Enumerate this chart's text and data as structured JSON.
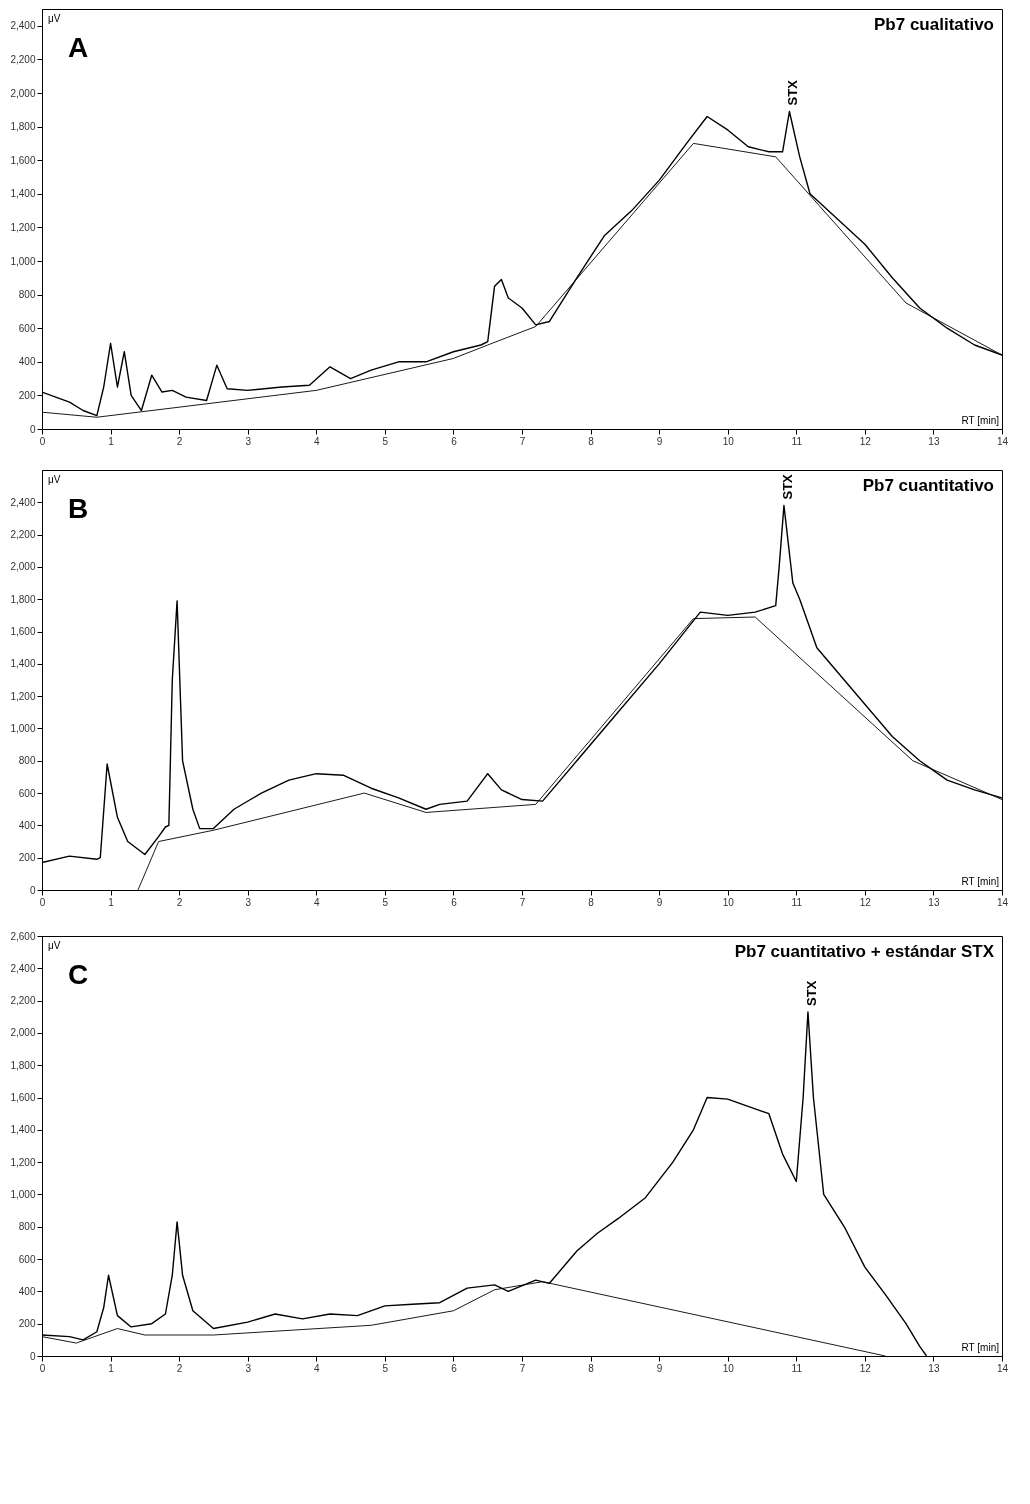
{
  "chart_data": [
    {
      "type": "line",
      "title": "Pb7 cualitativo",
      "xlabel": "RT [min]",
      "ylabel": "μV",
      "annotations": [
        "A",
        {
          "text": "STX",
          "x": 10.9,
          "y": 1890
        }
      ],
      "xlim": [
        0,
        14
      ],
      "xticks": [
        0,
        1,
        2,
        3,
        4,
        5,
        6,
        7,
        8,
        9,
        10,
        11,
        12,
        13,
        14
      ],
      "ylim": [
        0,
        2500
      ],
      "yticks": [
        0,
        200,
        400,
        600,
        800,
        {
          "value": 1000,
          "label": "1,000"
        },
        {
          "value": 1200,
          "label": "1,200"
        },
        {
          "value": 1400,
          "label": "1,400"
        },
        {
          "value": 1600,
          "label": "1,600"
        },
        {
          "value": 1800,
          "label": "1,800"
        },
        {
          "value": 2000,
          "label": "2,000"
        },
        {
          "value": 2200,
          "label": "2,200"
        },
        {
          "value": 2400,
          "label": "2,400"
        }
      ],
      "series": [
        {
          "color": "#000000",
          "x": [
            0,
            0.2,
            0.4,
            0.6,
            0.8,
            0.9,
            1.0,
            1.1,
            1.2,
            1.3,
            1.45,
            1.6,
            1.75,
            1.9,
            2.1,
            2.4,
            2.55,
            2.7,
            3.0,
            3.5,
            3.9,
            4.2,
            4.5,
            4.8,
            5.2,
            5.6,
            6.0,
            6.4,
            6.5,
            6.6,
            6.7,
            6.8,
            7.0,
            7.2,
            7.4,
            7.8,
            8.2,
            8.6,
            9.0,
            9.4,
            9.7,
            10.0,
            10.3,
            10.6,
            10.8,
            10.9,
            11.05,
            11.2,
            11.6,
            12.0,
            12.4,
            12.8,
            13.2,
            13.6,
            14
          ],
          "values": [
            220,
            190,
            160,
            110,
            80,
            250,
            510,
            250,
            460,
            200,
            110,
            320,
            220,
            230,
            190,
            170,
            380,
            240,
            230,
            250,
            260,
            370,
            300,
            350,
            400,
            400,
            460,
            500,
            520,
            850,
            890,
            780,
            720,
            620,
            640,
            900,
            1150,
            1300,
            1480,
            1700,
            1860,
            1780,
            1680,
            1650,
            1650,
            1890,
            1620,
            1400,
            1250,
            1100,
            900,
            720,
            600,
            500,
            440
          ]
        },
        {
          "color": "#000000",
          "x": [
            0,
            0.8,
            2,
            4,
            6,
            6.5,
            7.2,
            9.5,
            10.7,
            12.6,
            14
          ],
          "values": [
            100,
            70,
            130,
            230,
            420,
            500,
            610,
            1700,
            1620,
            750,
            440
          ]
        }
      ]
    },
    {
      "type": "line",
      "title": "Pb7 cuantitativo",
      "xlabel": "RT [min]",
      "ylabel": "μV",
      "annotations": [
        "B",
        {
          "text": "STX",
          "x": 10.82,
          "y": 2380
        }
      ],
      "xlim": [
        0,
        14
      ],
      "xticks": [
        0,
        1,
        2,
        3,
        4,
        5,
        6,
        7,
        8,
        9,
        10,
        11,
        12,
        13,
        14
      ],
      "ylim": [
        0,
        2600
      ],
      "yticks": [
        0,
        200,
        400,
        600,
        800,
        {
          "value": 1000,
          "label": "1,000"
        },
        {
          "value": 1200,
          "label": "1,200"
        },
        {
          "value": 1400,
          "label": "1,400"
        },
        {
          "value": 1600,
          "label": "1,600"
        },
        {
          "value": 1800,
          "label": "1,800"
        },
        {
          "value": 2000,
          "label": "2,000"
        },
        {
          "value": 2200,
          "label": "2,200"
        },
        {
          "value": 2400,
          "label": "2,400"
        }
      ],
      "series": [
        {
          "color": "#000000",
          "x": [
            0,
            0.4,
            0.8,
            0.85,
            0.95,
            1.1,
            1.25,
            1.5,
            1.7,
            1.8,
            1.85,
            1.9,
            1.97,
            2.05,
            2.2,
            2.3,
            2.5,
            2.8,
            3.2,
            3.6,
            4.0,
            4.4,
            4.8,
            5.2,
            5.6,
            5.8,
            6.2,
            6.5,
            6.7,
            7.0,
            7.3,
            7.8,
            8.4,
            9.0,
            9.6,
            10.0,
            10.4,
            10.7,
            10.75,
            10.82,
            10.95,
            11.05,
            11.3,
            11.6,
            12.0,
            12.4,
            12.8,
            13.2,
            13.6,
            14
          ],
          "values": [
            170,
            210,
            190,
            200,
            780,
            450,
            300,
            220,
            330,
            390,
            400,
            1300,
            1790,
            800,
            500,
            380,
            380,
            500,
            600,
            680,
            720,
            710,
            630,
            570,
            500,
            530,
            550,
            720,
            620,
            560,
            550,
            800,
            1100,
            1400,
            1720,
            1700,
            1720,
            1760,
            2000,
            2380,
            1900,
            1800,
            1500,
            1350,
            1150,
            950,
            800,
            680,
            620,
            570
          ]
        },
        {
          "color": "#000000",
          "x": [
            1.4,
            1.7,
            2.5,
            4.7,
            5.6,
            7.2,
            9.5,
            10.4,
            12.7,
            14
          ],
          "values": [
            0,
            300,
            370,
            600,
            480,
            530,
            1680,
            1690,
            800,
            560
          ]
        }
      ]
    },
    {
      "type": "line",
      "title": "Pb7 cuantitativo + estándar STX",
      "xlabel": "RT [min]",
      "ylabel": "μV",
      "annotations": [
        "C",
        {
          "text": "STX",
          "x": 11.17,
          "y": 2130
        }
      ],
      "xlim": [
        0,
        14
      ],
      "xticks": [
        0,
        1,
        2,
        3,
        4,
        5,
        6,
        7,
        8,
        9,
        10,
        11,
        12,
        13,
        14
      ],
      "ylim": [
        0,
        2600
      ],
      "yticks": [
        0,
        200,
        400,
        600,
        800,
        {
          "value": 1000,
          "label": "1,000"
        },
        {
          "value": 1200,
          "label": "1,200"
        },
        {
          "value": 1400,
          "label": "1,400"
        },
        {
          "value": 1600,
          "label": "1,600"
        },
        {
          "value": 1800,
          "label": "1,800"
        },
        {
          "value": 2000,
          "label": "2,000"
        },
        {
          "value": 2200,
          "label": "2,200"
        },
        {
          "value": 2400,
          "label": "2,400"
        },
        {
          "value": 2600,
          "label": "2,600"
        }
      ],
      "series": [
        {
          "color": "#000000",
          "x": [
            0,
            0.4,
            0.6,
            0.8,
            0.9,
            0.97,
            1.1,
            1.3,
            1.6,
            1.8,
            1.9,
            1.97,
            2.05,
            2.2,
            2.5,
            3.0,
            3.4,
            3.8,
            4.2,
            4.6,
            5.0,
            5.4,
            5.8,
            6.2,
            6.6,
            6.8,
            7.2,
            7.4,
            7.8,
            8.1,
            8.4,
            8.8,
            9.2,
            9.5,
            9.7,
            10.0,
            10.4,
            10.6,
            10.8,
            11.0,
            11.1,
            11.17,
            11.25,
            11.4,
            11.7,
            12.0,
            12.3,
            12.6,
            12.8,
            12.9
          ],
          "values": [
            130,
            120,
            100,
            150,
            300,
            500,
            250,
            180,
            200,
            260,
            500,
            830,
            500,
            280,
            170,
            210,
            260,
            230,
            260,
            250,
            310,
            320,
            330,
            420,
            440,
            400,
            470,
            450,
            650,
            760,
            850,
            980,
            1200,
            1400,
            1600,
            1590,
            1530,
            1500,
            1250,
            1080,
            1600,
            2130,
            1600,
            1000,
            800,
            550,
            380,
            200,
            60,
            0
          ]
        },
        {
          "color": "#000000",
          "x": [
            0,
            0.5,
            1.1,
            1.5,
            2.5,
            4.8,
            6.0,
            6.6,
            7.3,
            12.3
          ],
          "values": [
            120,
            80,
            170,
            130,
            130,
            190,
            280,
            410,
            460,
            0
          ]
        }
      ]
    }
  ]
}
